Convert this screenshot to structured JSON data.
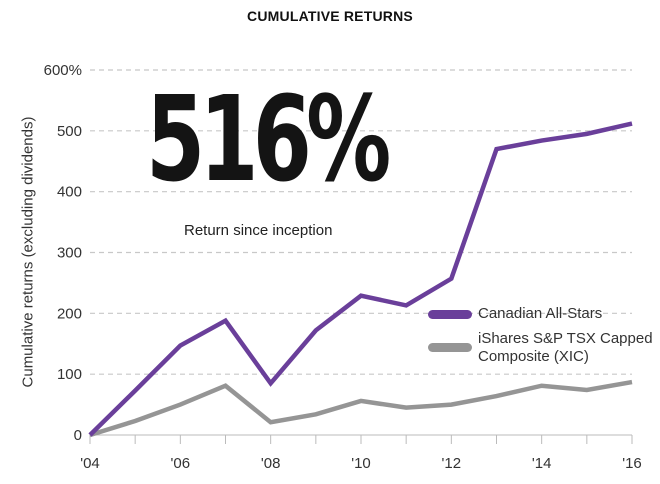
{
  "chart_data": {
    "type": "line",
    "title": "CUMULATIVE RETURNS",
    "ylabel": "Cumulative returns (excluding dividends)",
    "xlabel": "",
    "x": [
      2004,
      2005,
      2006,
      2007,
      2008,
      2009,
      2010,
      2011,
      2012,
      2013,
      2014,
      2015,
      2016
    ],
    "x_tick_labels": [
      "'04",
      "'06",
      "'08",
      "'10",
      "'12",
      "'14",
      "'16"
    ],
    "y_tick_labels": [
      "0",
      "100",
      "200",
      "300",
      "400",
      "500",
      "600%"
    ],
    "ylim": [
      0,
      600
    ],
    "grid": "horizontal dashed",
    "legend_position": "right",
    "series": [
      {
        "name": "Canadian All-Stars",
        "color": "#6a3f9a",
        "values": [
          0,
          73,
          147,
          188,
          85,
          172,
          229,
          213,
          257,
          470,
          484,
          495,
          512
        ]
      },
      {
        "name": "iShares S&P TSX Capped Composite (XIC)",
        "color": "#959595",
        "values": [
          0,
          23,
          50,
          81,
          21,
          34,
          56,
          45,
          50,
          64,
          81,
          74,
          87
        ]
      }
    ],
    "annotation": {
      "value": "516%",
      "caption": "Return since inception"
    }
  }
}
